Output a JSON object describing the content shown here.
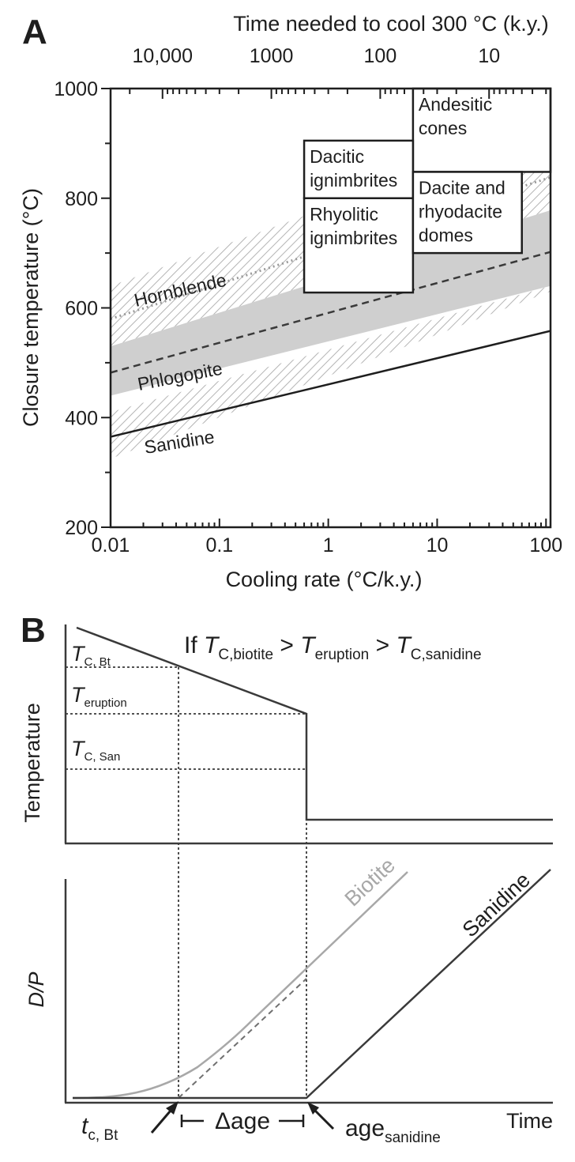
{
  "chart_data": [
    {
      "panel": "A",
      "type": "line",
      "xscale": "log",
      "xlabel": "Cooling rate (°C/k.y.)",
      "ylabel": "Closure temperature (°C)",
      "x2label": "Time needed to cool 300 °C (k.y.)",
      "xlim": [
        0.01,
        110
      ],
      "ylim": [
        200,
        1000
      ],
      "xticks": [
        {
          "value": 0.01,
          "label": "0.01"
        },
        {
          "value": 0.1,
          "label": "0.1"
        },
        {
          "value": 1,
          "label": "1"
        },
        {
          "value": 10,
          "label": "10"
        },
        {
          "value": 100,
          "label": "100"
        }
      ],
      "yticks": [
        {
          "value": 200,
          "label": "200"
        },
        {
          "value": 400,
          "label": "400"
        },
        {
          "value": 600,
          "label": "600"
        },
        {
          "value": 800,
          "label": "800"
        },
        {
          "value": 1000,
          "label": "1000"
        }
      ],
      "x2ticks": [
        {
          "value": 10000,
          "label": "10,000"
        },
        {
          "value": 1000,
          "label": "1000"
        },
        {
          "value": 100,
          "label": "100"
        },
        {
          "value": 10,
          "label": "10"
        }
      ],
      "series": [
        {
          "name": "Hornblende",
          "style": "dotted",
          "color": "#9a9a9a",
          "x": [
            0.01,
            110
          ],
          "y": [
            580,
            838
          ],
          "band_low": [
            530,
            778
          ],
          "band_high": [
            640,
            930
          ],
          "band_fill": "hatch"
        },
        {
          "name": "Phlogopite",
          "style": "dashed",
          "color": "#3a3a3a",
          "x": [
            0.01,
            110
          ],
          "y": [
            482,
            702
          ],
          "band_low": [
            440,
            640
          ],
          "band_high": [
            530,
            778
          ],
          "band_fill": "gray"
        },
        {
          "name": "Sanidine",
          "style": "solid",
          "color": "#1e1e1e",
          "x": [
            0.01,
            110
          ],
          "y": [
            365,
            558
          ],
          "band_low": [
            325,
            630
          ],
          "band_high": [
            410,
            640
          ],
          "band_fill": "hatch"
        }
      ],
      "boxes": [
        {
          "lines": [
            "Andesitic",
            "cones"
          ],
          "x": [
            6,
            110
          ],
          "y": [
            848,
            1000
          ]
        },
        {
          "lines": [
            "Dacitic",
            "ignimbrites"
          ],
          "x": [
            0.6,
            6
          ],
          "y": [
            800,
            905
          ]
        },
        {
          "lines": [
            "Rhyolitic",
            "ignimbrites"
          ],
          "x": [
            0.6,
            6
          ],
          "y": [
            628,
            800
          ]
        },
        {
          "lines": [
            "Dacite and",
            "rhyodacite",
            "domes"
          ],
          "x": [
            6,
            60
          ],
          "y": [
            700,
            848
          ]
        }
      ]
    },
    {
      "panel": "B",
      "type": "line",
      "title_parts": {
        "lead": "If ",
        "t1": "T",
        "s1": "C,biotite",
        "gt1": " > ",
        "t2": "T",
        "s2": "eruption",
        "gt2": " > ",
        "t3": "T",
        "s3": "C,sanidine"
      },
      "upper_ylabel": "Temperature",
      "lower_ylabel": "D/P",
      "xlabel": "Time",
      "upper_levels": [
        {
          "main": "T",
          "sub": "C, Bt"
        },
        {
          "main": "T",
          "sub": "eruption"
        },
        {
          "main": "T",
          "sub": "C, San"
        }
      ],
      "curve_labels": {
        "biotite": "Biotite",
        "sanidine": "Sanidine"
      },
      "annotations": {
        "tc_main": "t",
        "tc_sub": "c, Bt",
        "delta_age": "Δage",
        "age_main": "age",
        "age_sub": "sanidine"
      },
      "colors": {
        "biotite": "#a8a8a8",
        "sanidine": "#3a3a3a",
        "hatch": "#b4b4b4",
        "band": "#cfcfcf"
      }
    }
  ]
}
